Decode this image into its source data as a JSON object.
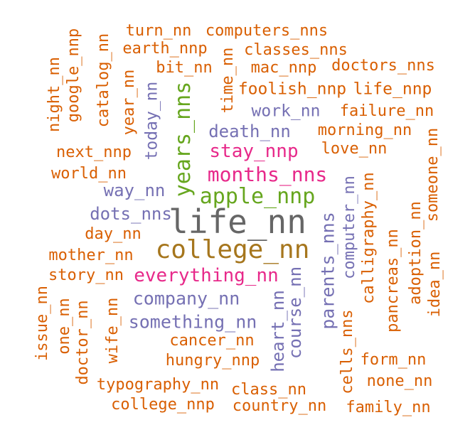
{
  "words": [
    {
      "key": "life_nn",
      "text": "life_nn",
      "color": "#666666"
    },
    {
      "key": "college_nn",
      "text": "college_nn",
      "color": "#a6761d"
    },
    {
      "key": "apple_nnp",
      "text": "apple_nnp",
      "color": "#66a61e"
    },
    {
      "key": "years_nns",
      "text": "years_nns",
      "color": "#66a61e"
    },
    {
      "key": "months_nns",
      "text": "months_nns",
      "color": "#e7298a"
    },
    {
      "key": "stay_nnp",
      "text": "stay_nnp",
      "color": "#e7298a"
    },
    {
      "key": "everything_nn",
      "text": "everything_nn",
      "color": "#e7298a"
    },
    {
      "key": "death_nn",
      "text": "death_nn",
      "color": "#7570b3"
    },
    {
      "key": "company_nn",
      "text": "company_nn",
      "color": "#7570b3"
    },
    {
      "key": "something_nn",
      "text": "something_nn",
      "color": "#7570b3"
    },
    {
      "key": "parents_nns",
      "text": "parents_nns",
      "color": "#7570b3"
    },
    {
      "key": "way_nn",
      "text": "way_nn",
      "color": "#7570b3"
    },
    {
      "key": "dots_nns",
      "text": "dots_nns",
      "color": "#7570b3"
    },
    {
      "key": "work_nn",
      "text": "work_nn",
      "color": "#7570b3"
    },
    {
      "key": "today_nn",
      "text": "today_nn",
      "color": "#7570b3"
    },
    {
      "key": "heart_nn",
      "text": "heart_nn",
      "color": "#7570b3"
    },
    {
      "key": "course_nn",
      "text": "course_nn",
      "color": "#7570b3"
    },
    {
      "key": "computer_nn",
      "text": "computer_nn",
      "color": "#7570b3"
    },
    {
      "key": "turn_nn",
      "text": "turn_nn",
      "color": "#d95f02"
    },
    {
      "key": "computers_nns",
      "text": "computers_nns",
      "color": "#d95f02"
    },
    {
      "key": "earth_nnp",
      "text": "earth_nnp",
      "color": "#d95f02"
    },
    {
      "key": "classes_nns",
      "text": "classes_nns",
      "color": "#d95f02"
    },
    {
      "key": "bit_nn",
      "text": "bit_nn",
      "color": "#d95f02"
    },
    {
      "key": "mac_nnp",
      "text": "mac_nnp",
      "color": "#d95f02"
    },
    {
      "key": "doctors_nns",
      "text": "doctors_nns",
      "color": "#d95f02"
    },
    {
      "key": "foolish_nnp",
      "text": "foolish_nnp",
      "color": "#d95f02"
    },
    {
      "key": "life_nnp",
      "text": "life_nnp",
      "color": "#d95f02"
    },
    {
      "key": "failure_nn",
      "text": "failure_nn",
      "color": "#d95f02"
    },
    {
      "key": "morning_nn",
      "text": "morning_nn",
      "color": "#d95f02"
    },
    {
      "key": "love_nn",
      "text": "love_nn",
      "color": "#d95f02"
    },
    {
      "key": "next_nnp",
      "text": "next_nnp",
      "color": "#d95f02"
    },
    {
      "key": "world_nn",
      "text": "world_nn",
      "color": "#d95f02"
    },
    {
      "key": "day_nn",
      "text": "day_nn",
      "color": "#d95f02"
    },
    {
      "key": "mother_nn",
      "text": "mother_nn",
      "color": "#d95f02"
    },
    {
      "key": "story_nn",
      "text": "story_nn",
      "color": "#d95f02"
    },
    {
      "key": "cancer_nn",
      "text": "cancer_nn",
      "color": "#d95f02"
    },
    {
      "key": "hungry_nnp",
      "text": "hungry_nnp",
      "color": "#d95f02"
    },
    {
      "key": "typography_nn",
      "text": "typography_nn",
      "color": "#d95f02"
    },
    {
      "key": "class_nn",
      "text": "class_nn",
      "color": "#d95f02"
    },
    {
      "key": "college_nnp",
      "text": "college_nnp",
      "color": "#d95f02"
    },
    {
      "key": "country_nn",
      "text": "country_nn",
      "color": "#d95f02"
    },
    {
      "key": "form_nn",
      "text": "form_nn",
      "color": "#d95f02"
    },
    {
      "key": "none_nn",
      "text": "none_nn",
      "color": "#d95f02"
    },
    {
      "key": "family_nn",
      "text": "family_nn",
      "color": "#d95f02"
    },
    {
      "key": "night_nn",
      "text": "night_nn",
      "color": "#d95f02"
    },
    {
      "key": "google_nnp",
      "text": "google_nnp",
      "color": "#d95f02"
    },
    {
      "key": "catalog_nn",
      "text": "catalog_nn",
      "color": "#d95f02"
    },
    {
      "key": "year_nn",
      "text": "year_nn",
      "color": "#d95f02"
    },
    {
      "key": "time_nn",
      "text": "time_nn",
      "color": "#d95f02"
    },
    {
      "key": "someone_nn",
      "text": "someone_nn",
      "color": "#d95f02"
    },
    {
      "key": "calligraphy_nn",
      "text": "calligraphy_nn",
      "color": "#d95f02"
    },
    {
      "key": "pancreas_nn",
      "text": "pancreas_nn",
      "color": "#d95f02"
    },
    {
      "key": "adoption_nn",
      "text": "adoption_nn",
      "color": "#d95f02"
    },
    {
      "key": "idea_nn",
      "text": "idea_nn",
      "color": "#d95f02"
    },
    {
      "key": "cells_nns",
      "text": "cells_nns",
      "color": "#d95f02"
    },
    {
      "key": "issue_nn",
      "text": "issue_nn",
      "color": "#d95f02"
    },
    {
      "key": "one_nn",
      "text": "one_nn",
      "color": "#d95f02"
    },
    {
      "key": "doctor_nn",
      "text": "doctor_nn",
      "color": "#d95f02"
    },
    {
      "key": "wife_nn",
      "text": "wife_nn",
      "color": "#d95f02"
    }
  ]
}
